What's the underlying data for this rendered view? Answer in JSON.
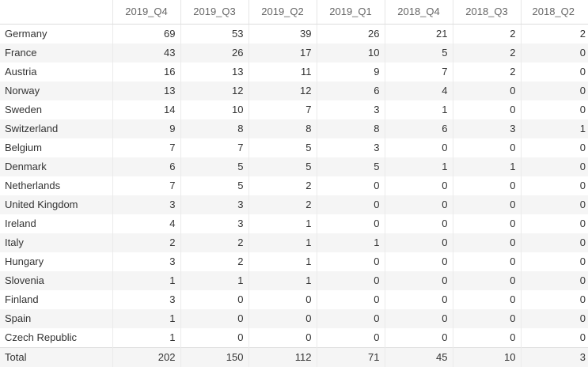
{
  "table": {
    "columns": [
      "",
      "2019_Q4",
      "2019_Q3",
      "2019_Q2",
      "2019_Q1",
      "2018_Q4",
      "2018_Q3",
      "2018_Q2"
    ],
    "rows": [
      {
        "label": "Germany",
        "values": [
          "69",
          "53",
          "39",
          "26",
          "21",
          "2",
          "2"
        ]
      },
      {
        "label": "France",
        "values": [
          "43",
          "26",
          "17",
          "10",
          "5",
          "2",
          "0"
        ]
      },
      {
        "label": "Austria",
        "values": [
          "16",
          "13",
          "11",
          "9",
          "7",
          "2",
          "0"
        ]
      },
      {
        "label": "Norway",
        "values": [
          "13",
          "12",
          "12",
          "6",
          "4",
          "0",
          "0"
        ]
      },
      {
        "label": "Sweden",
        "values": [
          "14",
          "10",
          "7",
          "3",
          "1",
          "0",
          "0"
        ]
      },
      {
        "label": "Switzerland",
        "values": [
          "9",
          "8",
          "8",
          "8",
          "6",
          "3",
          "1"
        ]
      },
      {
        "label": "Belgium",
        "values": [
          "7",
          "7",
          "5",
          "3",
          "0",
          "0",
          "0"
        ]
      },
      {
        "label": "Denmark",
        "values": [
          "6",
          "5",
          "5",
          "5",
          "1",
          "1",
          "0"
        ]
      },
      {
        "label": "Netherlands",
        "values": [
          "7",
          "5",
          "2",
          "0",
          "0",
          "0",
          "0"
        ]
      },
      {
        "label": "United Kingdom",
        "values": [
          "3",
          "3",
          "2",
          "0",
          "0",
          "0",
          "0"
        ]
      },
      {
        "label": "Ireland",
        "values": [
          "4",
          "3",
          "1",
          "0",
          "0",
          "0",
          "0"
        ]
      },
      {
        "label": "Italy",
        "values": [
          "2",
          "2",
          "1",
          "1",
          "0",
          "0",
          "0"
        ]
      },
      {
        "label": "Hungary",
        "values": [
          "3",
          "2",
          "1",
          "0",
          "0",
          "0",
          "0"
        ]
      },
      {
        "label": "Slovenia",
        "values": [
          "1",
          "1",
          "1",
          "0",
          "0",
          "0",
          "0"
        ]
      },
      {
        "label": "Finland",
        "values": [
          "3",
          "0",
          "0",
          "0",
          "0",
          "0",
          "0"
        ]
      },
      {
        "label": "Spain",
        "values": [
          "1",
          "0",
          "0",
          "0",
          "0",
          "0",
          "0"
        ]
      },
      {
        "label": "Czech Republic",
        "values": [
          "1",
          "0",
          "0",
          "0",
          "0",
          "0",
          "0"
        ]
      }
    ],
    "total": {
      "label": "Total",
      "values": [
        "202",
        "150",
        "112",
        "71",
        "45",
        "10",
        "3"
      ]
    }
  },
  "colors": {
    "stripe": "#f5f5f5",
    "text": "#333333",
    "header_text": "#666666",
    "border": "#e6e6e6"
  }
}
